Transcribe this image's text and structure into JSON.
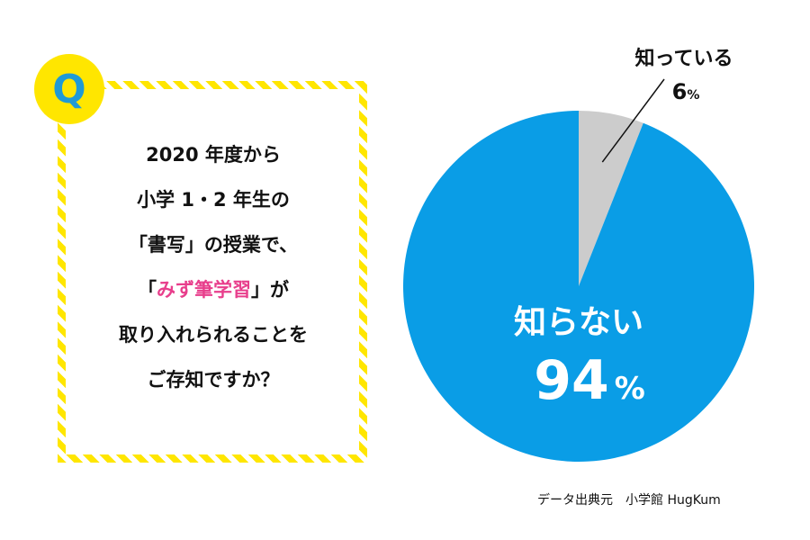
{
  "badge": "Q",
  "question": {
    "lines": [
      "2020 年度から",
      "小学 1・2 年生の",
      "「書写」の授業で、",
      {
        "open": "「",
        "accent": "みず筆学習",
        "close": "」が"
      },
      "取り入れられることを",
      "ご存知ですか？"
    ]
  },
  "source": "データ出典元　小学館 HugKum",
  "colors": {
    "yes": "#cccccc",
    "no": "#0a9de6",
    "accent": "#e83e8c",
    "badge": "#ffe600",
    "badge_text": "#1f9ad6"
  },
  "chart_data": {
    "type": "pie",
    "slices": [
      {
        "label": "知っている",
        "value": 6,
        "unit": "%",
        "color": "#cccccc"
      },
      {
        "label": "知らない",
        "value": 94,
        "unit": "%",
        "color": "#0a9de6"
      }
    ]
  }
}
